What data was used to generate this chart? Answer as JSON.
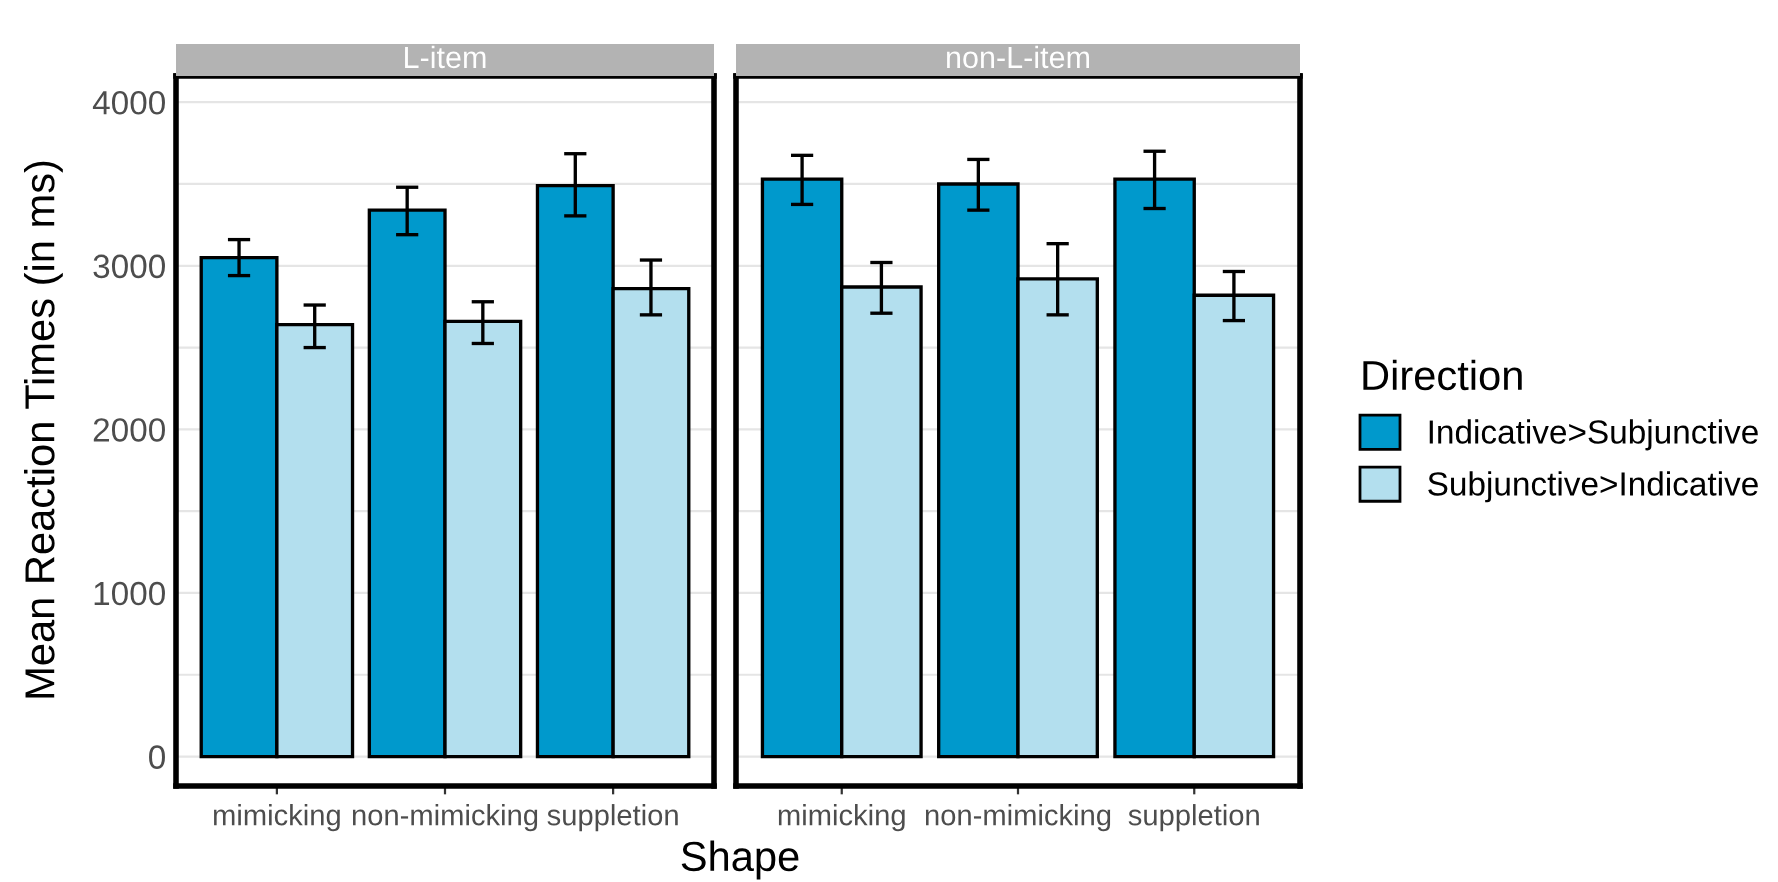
{
  "chart_data": [
    {
      "type": "bar",
      "title": "L-item",
      "ylabel": "Mean Reaction Times (in ms)",
      "xlabel": "Shape",
      "categories": [
        "mimicking",
        "non-mimicking",
        "suppletion"
      ],
      "series": [
        {
          "name": "Indicative>Subjunctive",
          "color": "#0099cc",
          "values": [
            3050,
            3340,
            3490
          ],
          "errors": [
            [
              2940,
              3160
            ],
            [
              3190,
              3480
            ],
            [
              3305,
              3685
            ]
          ]
        },
        {
          "name": "Subjunctive>Indicative",
          "color": "#b3dfee",
          "values": [
            2640,
            2660,
            2860
          ],
          "errors": [
            [
              2500,
              2760
            ],
            [
              2525,
              2780
            ],
            [
              2700,
              3035
            ]
          ]
        }
      ],
      "ylim": [
        -180,
        4160
      ],
      "yticks": [
        0,
        {
          "value": 500,
          "label": null
        },
        1000,
        {
          "value": 1500,
          "label": null
        },
        2000,
        {
          "value": 2500,
          "label": null
        },
        3000,
        {
          "value": 3500,
          "label": null
        },
        4000
      ],
      "grid": "y",
      "legend": "right",
      "legend_title": "Direction"
    },
    {
      "type": "bar",
      "title": "non-L-item",
      "categories": [
        "mimicking",
        "non-mimicking",
        "suppletion"
      ],
      "series": [
        {
          "color": "#0099cc",
          "values": [
            3530,
            3500,
            3530
          ],
          "errors": [
            [
              3375,
              3675
            ],
            [
              3340,
              3650
            ],
            [
              3350,
              3700
            ]
          ]
        },
        {
          "color": "#b3dfee",
          "values": [
            2870,
            2920,
            2820
          ],
          "errors": [
            [
              2710,
              3020
            ],
            [
              2700,
              3135
            ],
            [
              2665,
              2965
            ]
          ]
        }
      ],
      "ylim": [
        -180,
        4160
      ],
      "yticks": [
        0,
        {
          "value": 500,
          "label": null
        },
        1000,
        {
          "value": 1500,
          "label": null
        },
        2000,
        {
          "value": 2500,
          "label": null
        },
        3000,
        {
          "value": 3500,
          "label": null
        },
        4000
      ],
      "grid": "y",
      "tick_labels": "x"
    }
  ]
}
